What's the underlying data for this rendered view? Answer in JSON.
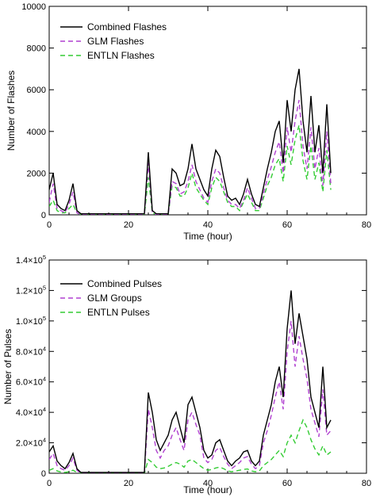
{
  "chart_data": [
    {
      "type": "line",
      "xlabel": "Time (hour)",
      "ylabel": "Number of Flashes",
      "xlim": [
        0,
        80
      ],
      "ylim": [
        0,
        10000
      ],
      "xticks": [
        0,
        20,
        40,
        60,
        80
      ],
      "xtick_labels": [
        "0",
        "20",
        "40",
        "60",
        "80"
      ],
      "yticks": [
        0,
        2000,
        4000,
        6000,
        8000,
        10000
      ],
      "ytick_labels": [
        "0",
        "2000",
        "4000",
        "6000",
        "8000",
        "10000"
      ],
      "legend_position": "top-left",
      "grid": false,
      "series": [
        {
          "name": "Combined Flashes",
          "color": "#000000",
          "dash": "solid",
          "x": [
            0,
            1,
            2,
            3,
            4,
            5,
            6,
            7,
            8,
            9,
            10,
            11,
            12,
            13,
            14,
            15,
            16,
            17,
            18,
            19,
            20,
            21,
            22,
            23,
            24,
            25,
            26,
            27,
            28,
            29,
            30,
            31,
            32,
            33,
            34,
            35,
            36,
            37,
            38,
            39,
            40,
            41,
            42,
            43,
            44,
            45,
            46,
            47,
            48,
            49,
            50,
            51,
            52,
            53,
            54,
            55,
            56,
            57,
            58,
            59,
            60,
            61,
            62,
            63,
            64,
            65,
            66,
            67,
            68,
            69,
            70,
            71
          ],
          "y": [
            1200,
            2000,
            500,
            300,
            200,
            700,
            1500,
            200,
            50,
            50,
            50,
            50,
            50,
            50,
            50,
            50,
            50,
            50,
            50,
            50,
            50,
            50,
            50,
            50,
            50,
            3000,
            200,
            50,
            50,
            50,
            50,
            2200,
            2000,
            1400,
            1500,
            2200,
            3400,
            2200,
            1700,
            1200,
            900,
            2200,
            3100,
            2800,
            1800,
            900,
            700,
            800,
            500,
            1000,
            1700,
            1000,
            500,
            400,
            1300,
            2200,
            3000,
            4000,
            4500,
            2500,
            5500,
            4000,
            6000,
            7000,
            4500,
            3000,
            5700,
            3000,
            4300,
            2000,
            5300,
            2000
          ]
        },
        {
          "name": "GLM Flashes",
          "color": "#b040d0",
          "dash": "6,4",
          "x": [
            0,
            1,
            2,
            3,
            4,
            5,
            6,
            7,
            8,
            9,
            10,
            11,
            12,
            13,
            14,
            15,
            16,
            17,
            18,
            19,
            20,
            21,
            22,
            23,
            24,
            25,
            26,
            27,
            28,
            29,
            30,
            31,
            32,
            33,
            34,
            35,
            36,
            37,
            38,
            39,
            40,
            41,
            42,
            43,
            44,
            45,
            46,
            47,
            48,
            49,
            50,
            51,
            52,
            53,
            54,
            55,
            56,
            57,
            58,
            59,
            60,
            61,
            62,
            63,
            64,
            65,
            66,
            67,
            68,
            69,
            70,
            71
          ],
          "y": [
            600,
            1500,
            300,
            200,
            100,
            500,
            1100,
            100,
            0,
            0,
            0,
            0,
            0,
            0,
            0,
            0,
            0,
            0,
            0,
            0,
            0,
            0,
            0,
            0,
            0,
            2500,
            150,
            0,
            0,
            0,
            0,
            1600,
            1500,
            1000,
            1100,
            1600,
            2400,
            1600,
            1200,
            800,
            600,
            1600,
            2200,
            2000,
            1300,
            700,
            500,
            500,
            300,
            700,
            1300,
            800,
            300,
            300,
            1000,
            1700,
            2300,
            3000,
            3500,
            2000,
            4200,
            3000,
            4500,
            5500,
            3300,
            2200,
            4200,
            2200,
            3200,
            1400,
            4000,
            1500
          ]
        },
        {
          "name": "ENTLN Flashes",
          "color": "#33cc33",
          "dash": "6,4",
          "x": [
            0,
            1,
            2,
            3,
            4,
            5,
            6,
            7,
            8,
            9,
            10,
            11,
            12,
            13,
            14,
            15,
            16,
            17,
            18,
            19,
            20,
            21,
            22,
            23,
            24,
            25,
            26,
            27,
            28,
            29,
            30,
            31,
            32,
            33,
            34,
            35,
            36,
            37,
            38,
            39,
            40,
            41,
            42,
            43,
            44,
            45,
            46,
            47,
            48,
            49,
            50,
            51,
            52,
            53,
            54,
            55,
            56,
            57,
            58,
            59,
            60,
            61,
            62,
            63,
            64,
            65,
            66,
            67,
            68,
            69,
            70,
            71
          ],
          "y": [
            400,
            700,
            200,
            100,
            100,
            300,
            500,
            100,
            0,
            0,
            0,
            0,
            0,
            0,
            0,
            0,
            0,
            0,
            0,
            0,
            0,
            0,
            0,
            0,
            0,
            1800,
            100,
            0,
            0,
            0,
            0,
            1400,
            1300,
            900,
            900,
            1300,
            2000,
            1300,
            1000,
            700,
            500,
            1300,
            1800,
            1600,
            1100,
            600,
            400,
            400,
            200,
            600,
            1000,
            600,
            200,
            200,
            800,
            1400,
            1800,
            2400,
            2700,
            1600,
            3300,
            2400,
            3600,
            4300,
            2600,
            1700,
            3300,
            1700,
            2500,
            1100,
            3100,
            1200
          ]
        }
      ]
    },
    {
      "type": "line",
      "xlabel": "Time (hour)",
      "ylabel": "Number of Pulses",
      "xlim": [
        0,
        80
      ],
      "ylim": [
        0,
        140000
      ],
      "xticks": [
        0,
        20,
        40,
        60,
        80
      ],
      "xtick_labels": [
        "0",
        "20",
        "40",
        "60",
        "80"
      ],
      "yticks": [
        0,
        20000,
        40000,
        60000,
        80000,
        100000,
        120000,
        140000
      ],
      "ytick_labels": [
        {
          "m": "0",
          "e": ""
        },
        {
          "m": "2.0×10",
          "e": "4"
        },
        {
          "m": "4.0×10",
          "e": "4"
        },
        {
          "m": "6.0×10",
          "e": "4"
        },
        {
          "m": "8.0×10",
          "e": "4"
        },
        {
          "m": "1.0×10",
          "e": "5"
        },
        {
          "m": "1.2×10",
          "e": "5"
        },
        {
          "m": "1.4×10",
          "e": "5"
        }
      ],
      "legend_position": "top-left",
      "grid": false,
      "series": [
        {
          "name": "Combined Pulses",
          "color": "#000000",
          "dash": "solid",
          "x": [
            0,
            1,
            2,
            3,
            4,
            5,
            6,
            7,
            8,
            9,
            10,
            11,
            12,
            13,
            14,
            15,
            16,
            17,
            18,
            19,
            20,
            21,
            22,
            23,
            24,
            25,
            26,
            27,
            28,
            29,
            30,
            31,
            32,
            33,
            34,
            35,
            36,
            37,
            38,
            39,
            40,
            41,
            42,
            43,
            44,
            45,
            46,
            47,
            48,
            49,
            50,
            51,
            52,
            53,
            54,
            55,
            56,
            57,
            58,
            59,
            60,
            61,
            62,
            63,
            64,
            65,
            66,
            67,
            68,
            69,
            70,
            71
          ],
          "y": [
            14000,
            18000,
            8000,
            5000,
            3000,
            7000,
            13000,
            3000,
            500,
            500,
            500,
            500,
            500,
            500,
            500,
            500,
            500,
            500,
            500,
            500,
            500,
            500,
            500,
            500,
            500,
            53000,
            40000,
            22000,
            15000,
            20000,
            25000,
            35000,
            40000,
            30000,
            20000,
            45000,
            50000,
            40000,
            30000,
            15000,
            10000,
            12000,
            20000,
            22000,
            15000,
            8000,
            5000,
            8000,
            10000,
            14000,
            15000,
            8000,
            5000,
            8000,
            25000,
            35000,
            45000,
            60000,
            70000,
            50000,
            95000,
            120000,
            85000,
            105000,
            90000,
            75000,
            50000,
            40000,
            30000,
            70000,
            30000,
            35000
          ]
        },
        {
          "name": "GLM Groups",
          "color": "#b040d0",
          "dash": "6,4",
          "x": [
            0,
            1,
            2,
            3,
            4,
            5,
            6,
            7,
            8,
            9,
            10,
            11,
            12,
            13,
            14,
            15,
            16,
            17,
            18,
            19,
            20,
            21,
            22,
            23,
            24,
            25,
            26,
            27,
            28,
            29,
            30,
            31,
            32,
            33,
            34,
            35,
            36,
            37,
            38,
            39,
            40,
            41,
            42,
            43,
            44,
            45,
            46,
            47,
            48,
            49,
            50,
            51,
            52,
            53,
            54,
            55,
            56,
            57,
            58,
            59,
            60,
            61,
            62,
            63,
            64,
            65,
            66,
            67,
            68,
            69,
            70,
            71
          ],
          "y": [
            9000,
            13000,
            5000,
            3000,
            2000,
            5000,
            10000,
            2000,
            0,
            0,
            0,
            0,
            0,
            0,
            0,
            0,
            0,
            0,
            0,
            0,
            0,
            0,
            0,
            0,
            0,
            42000,
            30000,
            15000,
            10000,
            15000,
            18000,
            25000,
            30000,
            22000,
            15000,
            35000,
            40000,
            32000,
            25000,
            10000,
            7000,
            9000,
            15000,
            17000,
            11000,
            6000,
            3000,
            5000,
            7000,
            10000,
            11000,
            6000,
            3000,
            5000,
            20000,
            28000,
            38000,
            50000,
            60000,
            42000,
            80000,
            100000,
            70000,
            90000,
            75000,
            62000,
            42000,
            33000,
            24000,
            55000,
            25000,
            28000
          ]
        },
        {
          "name": "ENTLN Pulses",
          "color": "#33cc33",
          "dash": "6,4",
          "x": [
            0,
            1,
            2,
            3,
            4,
            5,
            6,
            7,
            8,
            9,
            10,
            11,
            12,
            13,
            14,
            15,
            16,
            17,
            18,
            19,
            20,
            21,
            22,
            23,
            24,
            25,
            26,
            27,
            28,
            29,
            30,
            31,
            32,
            33,
            34,
            35,
            36,
            37,
            38,
            39,
            40,
            41,
            42,
            43,
            44,
            45,
            46,
            47,
            48,
            49,
            50,
            51,
            52,
            53,
            54,
            55,
            56,
            57,
            58,
            59,
            60,
            61,
            62,
            63,
            64,
            65,
            66,
            67,
            68,
            69,
            70,
            71
          ],
          "y": [
            2000,
            3000,
            1500,
            800,
            500,
            1000,
            2000,
            500,
            0,
            0,
            0,
            0,
            0,
            0,
            0,
            0,
            0,
            0,
            0,
            0,
            0,
            0,
            0,
            0,
            0,
            9000,
            7000,
            4000,
            3000,
            3500,
            4500,
            6000,
            7000,
            6000,
            4000,
            8000,
            9000,
            7000,
            5000,
            3000,
            2000,
            2500,
            3500,
            4000,
            3000,
            1500,
            1000,
            1500,
            2000,
            2500,
            2800,
            1500,
            1000,
            1500,
            5000,
            7000,
            9000,
            12000,
            15000,
            11000,
            20000,
            25000,
            20000,
            28000,
            35000,
            30000,
            22000,
            16000,
            12000,
            18000,
            12000,
            14000
          ]
        }
      ]
    }
  ]
}
